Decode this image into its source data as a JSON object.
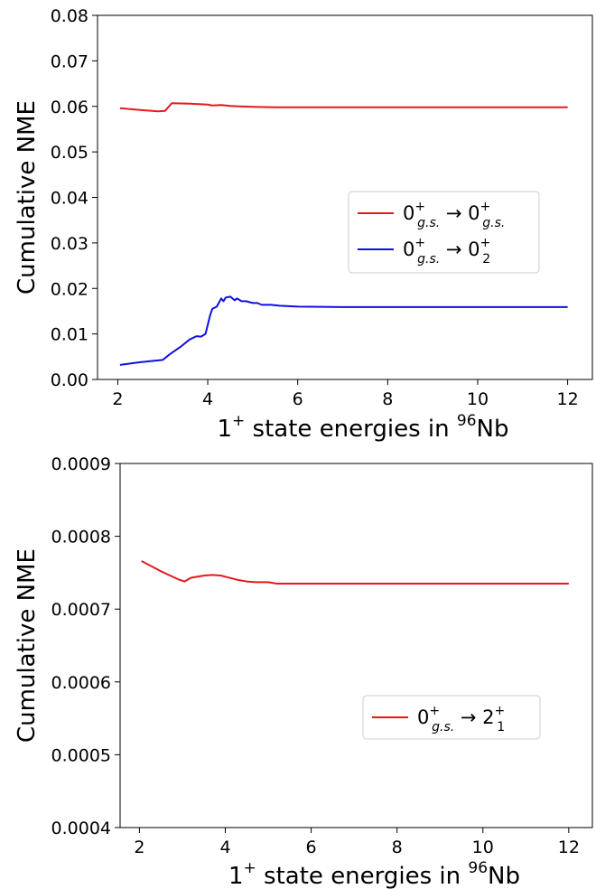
{
  "chart_data": [
    {
      "type": "line",
      "xlabel": "1⁺ state energies in ⁹⁶Nb",
      "ylabel": "Cumulative NME",
      "xlim": [
        1.55,
        12.55
      ],
      "ylim": [
        0.0,
        0.08
      ],
      "xticks": [
        "2",
        "4",
        "6",
        "8",
        "10",
        "12"
      ],
      "xtick_values": [
        2,
        4,
        6,
        8,
        10,
        12
      ],
      "yticks": [
        "0.00",
        "0.01",
        "0.02",
        "0.03",
        "0.04",
        "0.05",
        "0.06",
        "0.07",
        "0.08"
      ],
      "ytick_values": [
        0.0,
        0.01,
        0.02,
        0.03,
        0.04,
        0.05,
        0.06,
        0.07,
        0.08
      ],
      "grid": false,
      "legend_position": "center-right",
      "series": [
        {
          "name": "0⁺g.s. → 0⁺g.s.",
          "legend_parts": [
            "0",
            "+",
            "g.s.",
            " → 0",
            "+",
            "g.s."
          ],
          "color": "#e41a1c",
          "x": [
            2.05,
            2.5,
            2.9,
            3.05,
            3.2,
            3.6,
            3.8,
            4.0,
            4.1,
            4.3,
            4.5,
            4.7,
            5.0,
            5.5,
            6.0,
            7.0,
            8.0,
            10.0,
            12.0
          ],
          "y": [
            0.0596,
            0.0592,
            0.0589,
            0.059,
            0.0607,
            0.0606,
            0.0605,
            0.0604,
            0.0602,
            0.0603,
            0.0601,
            0.06,
            0.0599,
            0.0598,
            0.0598,
            0.0598,
            0.0598,
            0.0598,
            0.0598
          ]
        },
        {
          "name": "0⁺g.s. → 0₂⁺",
          "legend_parts": [
            "0",
            "+",
            "g.s.",
            " → 0",
            "+",
            "2"
          ],
          "color": "#1010e0",
          "x": [
            2.05,
            2.5,
            3.0,
            3.15,
            3.4,
            3.6,
            3.75,
            3.85,
            3.95,
            4.05,
            4.1,
            4.2,
            4.3,
            4.35,
            4.4,
            4.5,
            4.6,
            4.65,
            4.75,
            4.85,
            5.0,
            5.1,
            5.2,
            5.4,
            5.6,
            6.0,
            7.0,
            8.0,
            10.0,
            12.0
          ],
          "y": [
            0.0032,
            0.0038,
            0.0043,
            0.0055,
            0.0072,
            0.0088,
            0.0095,
            0.0094,
            0.01,
            0.014,
            0.0155,
            0.016,
            0.0178,
            0.0172,
            0.018,
            0.0182,
            0.0174,
            0.0178,
            0.0172,
            0.0172,
            0.0168,
            0.0168,
            0.0164,
            0.0164,
            0.0162,
            0.016,
            0.0159,
            0.0159,
            0.0159,
            0.0159
          ]
        }
      ]
    },
    {
      "type": "line",
      "xlabel": "1⁺ state energies in ⁹⁶Nb",
      "ylabel": "Cumulative NME",
      "xlim": [
        1.55,
        12.55
      ],
      "ylim": [
        0.0004,
        0.0009
      ],
      "xticks": [
        "2",
        "4",
        "6",
        "8",
        "10",
        "12"
      ],
      "xtick_values": [
        2,
        4,
        6,
        8,
        10,
        12
      ],
      "yticks": [
        "0.0004",
        "0.0005",
        "0.0006",
        "0.0007",
        "0.0008",
        "0.0009"
      ],
      "ytick_values": [
        0.0004,
        0.0005,
        0.0006,
        0.0007,
        0.0008,
        0.0009
      ],
      "grid": false,
      "legend_position": "center-right",
      "series": [
        {
          "name": "0⁺g.s. → 2₁⁺",
          "legend_parts": [
            "0",
            "+",
            "g.s.",
            " → 2",
            "+",
            "1"
          ],
          "color": "#e41a1c",
          "x": [
            2.05,
            2.5,
            2.9,
            3.05,
            3.2,
            3.5,
            3.7,
            3.9,
            4.1,
            4.3,
            4.5,
            4.7,
            5.0,
            5.2,
            6.0,
            8.0,
            10.0,
            12.0
          ],
          "y": [
            0.000766,
            0.000752,
            0.000741,
            0.000738,
            0.000743,
            0.000746,
            0.000747,
            0.000746,
            0.000743,
            0.00074,
            0.000738,
            0.000737,
            0.000737,
            0.000735,
            0.000735,
            0.000735,
            0.000735,
            0.000735
          ]
        }
      ]
    }
  ]
}
